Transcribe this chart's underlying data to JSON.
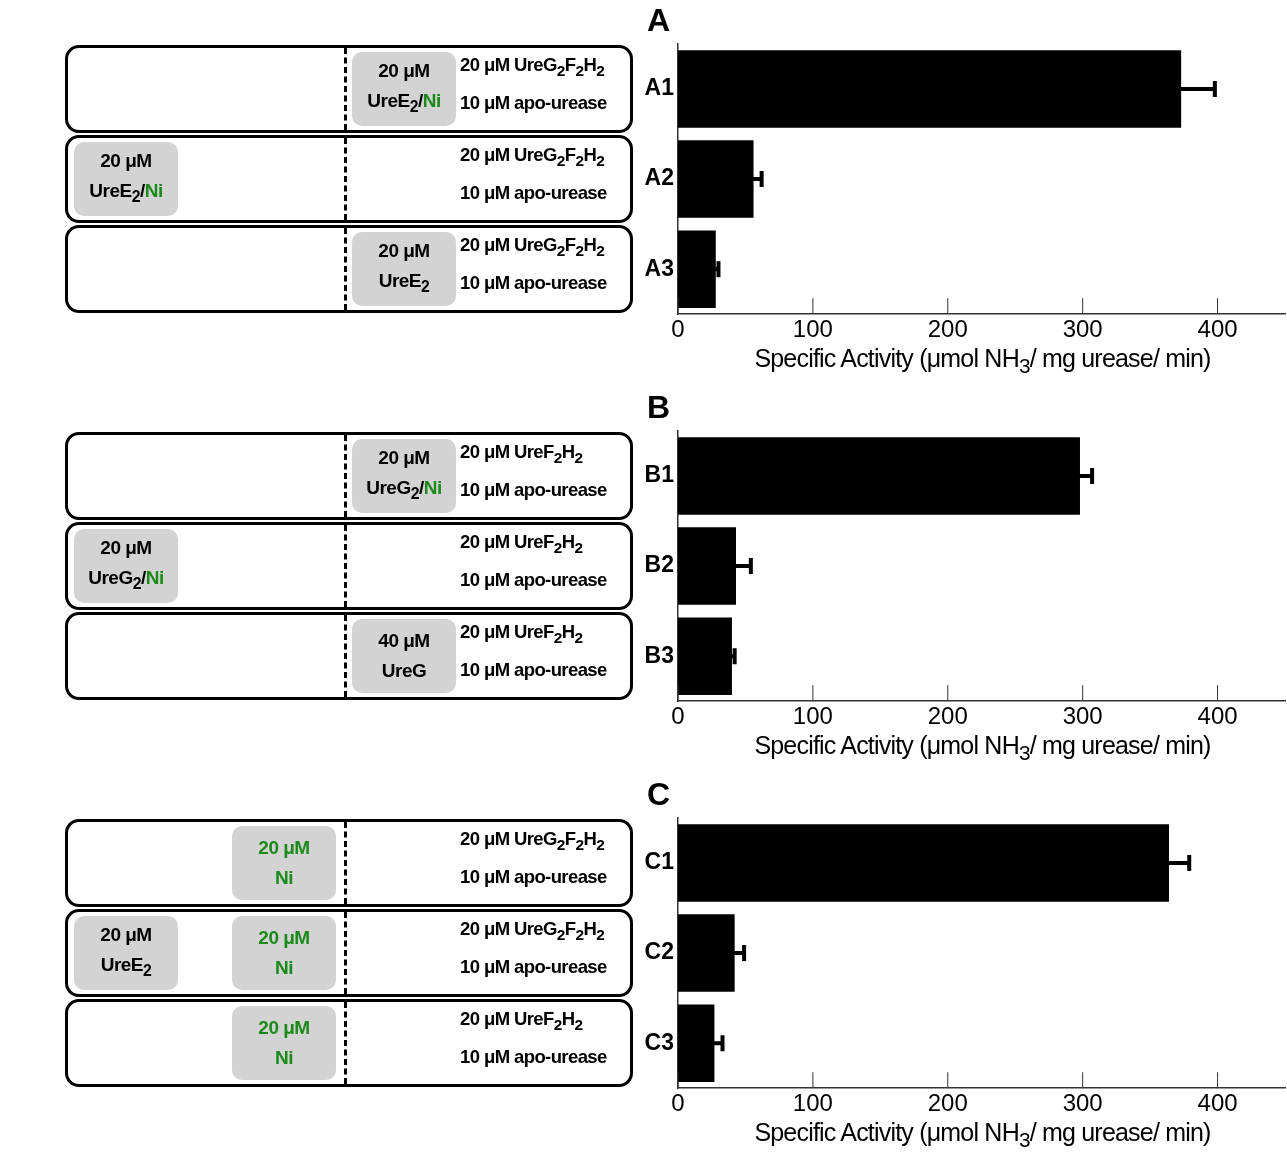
{
  "chart_data": [
    {
      "type": "bar",
      "orientation": "horizontal",
      "title": "A",
      "categories": [
        "A1",
        "A2",
        "A3"
      ],
      "values": [
        373,
        56,
        28
      ],
      "errors": [
        25,
        6,
        2
      ],
      "color": "#000000",
      "xlim": [
        0,
        450
      ],
      "xticks": [
        0,
        100,
        200,
        300,
        400
      ],
      "xlabel": "Specific Activity (μmol NH$_{3}$/ mg urease/ min)",
      "annotations": [
        "20 μM\nUreE$_{2}$/Ni",
        "20 μM UreG$_{2}$F$_{2}$H$_{2}$",
        "10 μM apo-urease",
        "20 μM\nUreE$_{2}$/Ni",
        "20 μM UreG$_{2}$F$_{2}$H$_{2}$",
        "10 μM apo-urease",
        "20 μM\nUreE$_{2}$",
        "20 μM UreG$_{2}$F$_{2}$H$_{2}$",
        "10 μM apo-urease"
      ]
    },
    {
      "type": "bar",
      "orientation": "horizontal",
      "title": "B",
      "categories": [
        "B1",
        "B2",
        "B3"
      ],
      "values": [
        298,
        43,
        40
      ],
      "errors": [
        9,
        11,
        2
      ],
      "color": "#000000",
      "xlim": [
        0,
        450
      ],
      "xticks": [
        0,
        100,
        200,
        300,
        400
      ],
      "xlabel": "Specific Activity (μmol NH$_{3}$/ mg urease/ min)",
      "annotations": [
        "20 μM\nUreG$_{2}$/Ni",
        "20 μM UreF$_{2}$H$_{2}$",
        "10 μM apo-urease",
        "20 μM\nUreG$_{2}$/Ni",
        "20 μM UreF$_{2}$H$_{2}$",
        "10 μM apo-urease",
        "40 μM\nUreG",
        "20 μM UreF$_{2}$H$_{2}$",
        "10 μM apo-urease"
      ]
    },
    {
      "type": "bar",
      "orientation": "horizontal",
      "title": "C",
      "categories": [
        "C1",
        "C2",
        "C3"
      ],
      "values": [
        364,
        42,
        27
      ],
      "errors": [
        15,
        7,
        6
      ],
      "color": "#000000",
      "xlim": [
        0,
        450
      ],
      "xticks": [
        0,
        100,
        200,
        300,
        400
      ],
      "xlabel": "Specific Activity (μmol NH$_{3}$/ mg urease/ min)",
      "annotations": [
        "20 μM\nNi",
        "20 μM UreG$_{2}$F$_{2}$H$_{2}$",
        "10 μM apo-urease",
        "20 μM\nUreE$_{2}$",
        "20 μM\nNi",
        "20 μM UreG$_{2}$F$_{2}$H$_{2}$",
        "10 μM apo-urease",
        "20 μM\nNi",
        "20 μM UreF$_{2}$H$_{2}$",
        "10 μM apo-urease"
      ]
    }
  ]
}
